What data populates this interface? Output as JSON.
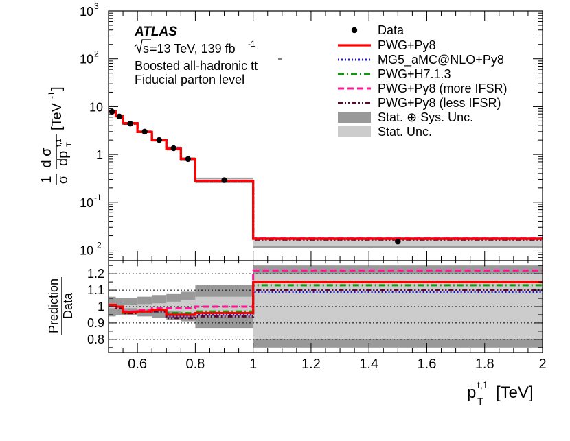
{
  "chart_data": {
    "type": "line",
    "experiment": "ATLAS",
    "energy_label": "s",
    "energy_text": "=13 TeV, 139 fb",
    "lumi_exp": "-1",
    "subtitle1": "Boosted all-hadronic t",
    "subtitle1_tbar": "t",
    "subtitle2": "Fiducial parton level",
    "xlabel_main": "p",
    "xlabel_sup": "t,1",
    "xlabel_sub": "T",
    "xlabel_unit": "[TeV]",
    "ylabel_top": {
      "frac_num": "1",
      "frac_den": "σ",
      "d_sigma": "d σ",
      "dp": "dp",
      "sup": "t,1",
      "sub": "T",
      "unit": "[TeV",
      "unit_exp": "-1",
      "unit_close": "]"
    },
    "ratio_ylabel_num": "Prediction",
    "ratio_ylabel_den": "Data",
    "bin_edges": [
      0.5,
      0.525,
      0.55,
      0.6,
      0.65,
      0.7,
      0.75,
      0.8,
      1.0,
      2.0
    ],
    "top_ylim": [
      0.006,
      1000
    ],
    "top_yticks": [
      {
        "mant": "10",
        "exp": "-2",
        "v": 0.01
      },
      {
        "mant": "10",
        "exp": "-1",
        "v": 0.1
      },
      {
        "mant": "1",
        "exp": "",
        "v": 1
      },
      {
        "mant": "10",
        "exp": "",
        "v": 10
      },
      {
        "mant": "10",
        "exp": "2",
        "v": 100
      },
      {
        "mant": "10",
        "exp": "3",
        "v": 1000
      }
    ],
    "x_ticks": [
      "0.6",
      "0.8",
      "1",
      "1.2",
      "1.4",
      "1.6",
      "1.8",
      "2"
    ],
    "ratio_ylim": [
      0.72,
      1.28
    ],
    "ratio_yticks": [
      "0.8",
      "0.9",
      "1",
      "1.1",
      "1.2"
    ],
    "ratio_gridlines": [
      0.8,
      0.9,
      1.0,
      1.1,
      1.2
    ],
    "data": {
      "name": "Data",
      "x": [
        0.5125,
        0.5375,
        0.575,
        0.625,
        0.675,
        0.725,
        0.775,
        0.9,
        1.5
      ],
      "y": [
        7.8,
        6.2,
        4.4,
        3.0,
        2.0,
        1.35,
        0.8,
        0.29,
        0.015
      ]
    },
    "series": [
      {
        "name": "PWG+Py8",
        "color": "#ff0000",
        "dash": "",
        "width": 3.2,
        "values": [
          7.9,
          6.3,
          4.5,
          2.95,
          1.98,
          1.31,
          0.8,
          0.278,
          0.0172
        ],
        "ratio": [
          1.01,
          1.0,
          0.965,
          0.97,
          0.98,
          0.95,
          0.95,
          0.96,
          1.15
        ]
      },
      {
        "name": "MG5_aMC@NLO+Py8",
        "color": "#1a16cc",
        "dash": "2,3",
        "width": 3,
        "values": [
          7.9,
          6.3,
          4.4,
          2.95,
          1.98,
          1.3,
          0.78,
          0.276,
          0.0166
        ],
        "ratio": [
          1.01,
          1.0,
          0.96,
          0.97,
          0.97,
          0.94,
          0.94,
          0.95,
          1.09
        ]
      },
      {
        "name": "PWG+H7.1.3",
        "color": "#0e9a0e",
        "dash": "9,4,2,4",
        "width": 3,
        "values": [
          7.9,
          6.3,
          4.4,
          2.95,
          1.98,
          1.31,
          0.8,
          0.277,
          0.0171
        ],
        "ratio": [
          1.01,
          1.0,
          0.96,
          0.97,
          0.98,
          0.96,
          0.96,
          0.97,
          1.13
        ]
      },
      {
        "name": "PWG+Py8 (more IFSR)",
        "color": "#ff1493",
        "dash": "9,5",
        "width": 3,
        "values": [
          7.9,
          6.3,
          4.5,
          2.95,
          1.98,
          1.33,
          0.81,
          0.28,
          0.0178
        ],
        "ratio": [
          1.01,
          1.0,
          0.97,
          0.98,
          0.99,
          0.99,
          0.99,
          1.0,
          1.22
        ]
      },
      {
        "name": "PWG+Py8 (less IFSR)",
        "color": "#5a0a2e",
        "dash": "7,3,2,3,2,3",
        "width": 3,
        "values": [
          7.9,
          6.2,
          4.4,
          2.95,
          1.98,
          1.28,
          0.78,
          0.272,
          0.0166
        ],
        "ratio": [
          1.01,
          0.99,
          0.96,
          0.97,
          0.97,
          0.93,
          0.93,
          0.94,
          1.1
        ]
      }
    ],
    "uncertainty": {
      "syst_label": "Stat. ⊕ Sys. Unc.",
      "stat_label": "Stat. Unc.",
      "syst_color": "#999999",
      "stat_color": "#cccccc",
      "syst_rel": [
        0.06,
        0.05,
        0.05,
        0.06,
        0.07,
        0.08,
        0.09,
        0.13,
        0.25
      ],
      "stat_rel": [
        0.01,
        0.01,
        0.01,
        0.015,
        0.02,
        0.03,
        0.04,
        0.06,
        0.2
      ]
    }
  }
}
